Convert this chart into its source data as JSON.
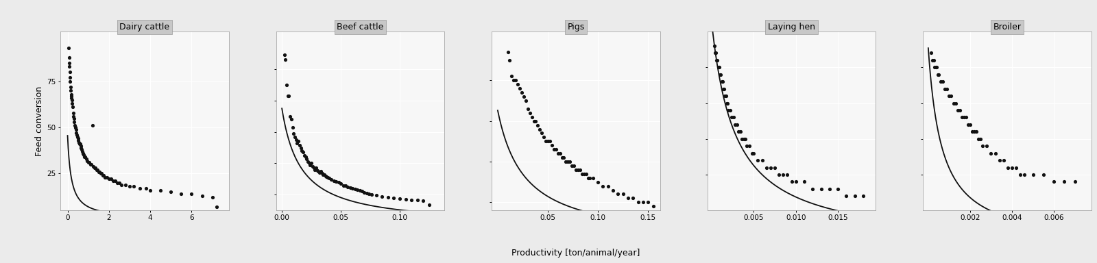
{
  "panels": [
    {
      "title": "Dairy cattle",
      "xlim": [
        -0.35,
        7.8
      ],
      "xticks": [
        0,
        2,
        4,
        6
      ],
      "ylim": [
        5,
        102
      ],
      "yticks": [
        25,
        50,
        75
      ],
      "fit_a": 8.2,
      "fit_b": 0.18,
      "points_x": [
        0.05,
        0.07,
        0.08,
        0.09,
        0.1,
        0.12,
        0.13,
        0.15,
        0.16,
        0.17,
        0.18,
        0.19,
        0.2,
        0.22,
        0.25,
        0.27,
        0.28,
        0.3,
        0.32,
        0.35,
        0.37,
        0.38,
        0.4,
        0.42,
        0.45,
        0.47,
        0.5,
        0.52,
        0.55,
        0.58,
        0.6,
        0.63,
        0.65,
        0.68,
        0.7,
        0.73,
        0.75,
        0.78,
        0.8,
        0.85,
        0.9,
        0.95,
        1.0,
        1.05,
        1.1,
        1.15,
        1.2,
        1.25,
        1.3,
        1.35,
        1.4,
        1.45,
        1.5,
        1.55,
        1.6,
        1.65,
        1.7,
        1.75,
        1.8,
        1.9,
        2.0,
        2.1,
        2.2,
        2.3,
        2.4,
        2.5,
        2.6,
        2.8,
        3.0,
        3.2,
        3.5,
        3.8,
        4.0,
        4.5,
        5.0,
        5.5,
        6.0,
        6.5,
        7.0,
        7.2
      ],
      "points_y": [
        93,
        88,
        85,
        83,
        80,
        77,
        75,
        72,
        70,
        68,
        67,
        66,
        65,
        63,
        61,
        58,
        56,
        55,
        53,
        51,
        50,
        50,
        49,
        47,
        46,
        45,
        44,
        43,
        42,
        41,
        41,
        40,
        39,
        38,
        37,
        36,
        36,
        35,
        34,
        34,
        33,
        32,
        31,
        31,
        30,
        30,
        51,
        29,
        28,
        28,
        27,
        27,
        26,
        26,
        25,
        25,
        24,
        24,
        23,
        23,
        22,
        22,
        21,
        21,
        20,
        20,
        19,
        19,
        18,
        18,
        17,
        17,
        16,
        16,
        15,
        14,
        14,
        13,
        12,
        7
      ]
    },
    {
      "title": "Beef cattle",
      "xlim": [
        -0.005,
        0.138
      ],
      "xticks": [
        0.0,
        0.05,
        0.1
      ],
      "ylim": [
        50,
        620
      ],
      "yticks": [
        100,
        200,
        300,
        400,
        500
      ],
      "fit_a": 6.0,
      "fit_b": 0.016,
      "points_x": [
        0.002,
        0.003,
        0.004,
        0.005,
        0.006,
        0.007,
        0.008,
        0.009,
        0.01,
        0.011,
        0.012,
        0.013,
        0.014,
        0.015,
        0.016,
        0.017,
        0.018,
        0.019,
        0.02,
        0.021,
        0.022,
        0.023,
        0.024,
        0.025,
        0.026,
        0.027,
        0.028,
        0.029,
        0.03,
        0.031,
        0.032,
        0.033,
        0.034,
        0.035,
        0.036,
        0.037,
        0.038,
        0.039,
        0.04,
        0.042,
        0.044,
        0.046,
        0.048,
        0.05,
        0.052,
        0.054,
        0.056,
        0.058,
        0.06,
        0.062,
        0.064,
        0.066,
        0.068,
        0.07,
        0.072,
        0.074,
        0.076,
        0.08,
        0.085,
        0.09,
        0.095,
        0.1,
        0.105,
        0.11,
        0.115,
        0.12,
        0.125
      ],
      "points_y": [
        547,
        530,
        450,
        415,
        415,
        350,
        340,
        315,
        295,
        285,
        275,
        265,
        270,
        258,
        248,
        240,
        235,
        225,
        220,
        215,
        205,
        200,
        195,
        200,
        190,
        185,
        180,
        185,
        178,
        175,
        170,
        175,
        168,
        165,
        163,
        160,
        158,
        155,
        153,
        148,
        145,
        142,
        140,
        135,
        130,
        128,
        125,
        122,
        120,
        118,
        115,
        113,
        112,
        108,
        105,
        103,
        100,
        98,
        95,
        92,
        90,
        88,
        85,
        84,
        83,
        82,
        68
      ]
    },
    {
      "title": "Pigs",
      "xlim": [
        -0.006,
        0.162
      ],
      "xticks": [
        0.05,
        0.1,
        0.15
      ],
      "ylim": [
        8,
        52
      ],
      "yticks": [
        10,
        20,
        30,
        40
      ],
      "fit_a": 0.88,
      "fit_b": 0.027,
      "points_x": [
        0.01,
        0.012,
        0.014,
        0.016,
        0.018,
        0.02,
        0.022,
        0.024,
        0.026,
        0.028,
        0.03,
        0.032,
        0.034,
        0.036,
        0.038,
        0.04,
        0.042,
        0.044,
        0.046,
        0.048,
        0.05,
        0.052,
        0.054,
        0.056,
        0.058,
        0.06,
        0.062,
        0.064,
        0.066,
        0.068,
        0.07,
        0.072,
        0.074,
        0.076,
        0.078,
        0.08,
        0.082,
        0.084,
        0.086,
        0.088,
        0.09,
        0.092,
        0.095,
        0.1,
        0.105,
        0.11,
        0.115,
        0.12,
        0.125,
        0.13,
        0.135,
        0.14,
        0.145,
        0.15,
        0.155
      ],
      "points_y": [
        47,
        45,
        41,
        40,
        40,
        39,
        38,
        37,
        36,
        35,
        33,
        32,
        31,
        30,
        30,
        29,
        28,
        27,
        26,
        25,
        25,
        25,
        24,
        23,
        23,
        22,
        22,
        21,
        21,
        20,
        20,
        20,
        19,
        19,
        18,
        18,
        18,
        17,
        17,
        17,
        16,
        16,
        16,
        15,
        14,
        14,
        13,
        12,
        12,
        11,
        11,
        10,
        10,
        10,
        9
      ]
    },
    {
      "title": "Laying hen",
      "xlim": [
        -0.0005,
        0.0195
      ],
      "xticks": [
        0.005,
        0.01,
        0.015
      ],
      "ylim": [
        5,
        30
      ],
      "yticks": [
        10,
        15,
        20,
        25
      ],
      "fit_a": 0.088,
      "fit_b": 0.0028,
      "points_x": [
        0.0003,
        0.0004,
        0.0005,
        0.0006,
        0.0007,
        0.0008,
        0.0009,
        0.001,
        0.0011,
        0.0012,
        0.0013,
        0.0014,
        0.0015,
        0.0016,
        0.0017,
        0.0018,
        0.0019,
        0.002,
        0.0022,
        0.0024,
        0.0026,
        0.0028,
        0.003,
        0.0032,
        0.0034,
        0.0036,
        0.0038,
        0.004,
        0.0042,
        0.0045,
        0.0048,
        0.005,
        0.0055,
        0.006,
        0.0065,
        0.007,
        0.0075,
        0.008,
        0.0085,
        0.009,
        0.0095,
        0.01,
        0.011,
        0.012,
        0.013,
        0.014,
        0.015,
        0.016,
        0.017,
        0.018
      ],
      "points_y": [
        28,
        27,
        27,
        26,
        26,
        25,
        25,
        24,
        24,
        23,
        23,
        22,
        22,
        21,
        21,
        20,
        20,
        19,
        19,
        18,
        18,
        17,
        17,
        16,
        16,
        15,
        15,
        15,
        14,
        14,
        13,
        13,
        12,
        12,
        11,
        11,
        11,
        10,
        10,
        10,
        9,
        9,
        9,
        8,
        8,
        8,
        8,
        7,
        7,
        7
      ]
    },
    {
      "title": "Broiler",
      "xlim": [
        -0.00025,
        0.0078
      ],
      "xticks": [
        0.002,
        0.004,
        0.006
      ],
      "ylim": [
        5,
        30
      ],
      "yticks": [
        10,
        15,
        20,
        25
      ],
      "fit_a": 0.018,
      "fit_b": 0.00065,
      "points_x": [
        0.00015,
        0.0002,
        0.00025,
        0.0003,
        0.00035,
        0.0004,
        0.00045,
        0.0005,
        0.0006,
        0.0007,
        0.0008,
        0.0009,
        0.001,
        0.0011,
        0.0012,
        0.0013,
        0.0014,
        0.0015,
        0.0016,
        0.0017,
        0.0018,
        0.0019,
        0.002,
        0.0021,
        0.0022,
        0.0023,
        0.0024,
        0.0025,
        0.0026,
        0.0028,
        0.003,
        0.0032,
        0.0034,
        0.0036,
        0.0038,
        0.004,
        0.0042,
        0.0044,
        0.0046,
        0.005,
        0.0055,
        0.006,
        0.0065,
        0.007
      ],
      "points_y": [
        27,
        26,
        26,
        25,
        25,
        25,
        24,
        24,
        23,
        23,
        22,
        22,
        21,
        21,
        20,
        20,
        19,
        19,
        18,
        18,
        18,
        17,
        17,
        16,
        16,
        16,
        15,
        15,
        14,
        14,
        13,
        13,
        12,
        12,
        11,
        11,
        11,
        10,
        10,
        10,
        10,
        9,
        9,
        9
      ]
    }
  ],
  "ylabel": "Feed conversion",
  "xlabel": "Productivity [ton/animal/year]",
  "bg_color": "#f7f7f7",
  "strip_color": "#c8c8c8",
  "grid_color": "#ffffff",
  "point_color": "#111111",
  "line_color": "#111111",
  "point_size": 14,
  "line_width": 1.3,
  "fig_bg": "#ebebeb"
}
